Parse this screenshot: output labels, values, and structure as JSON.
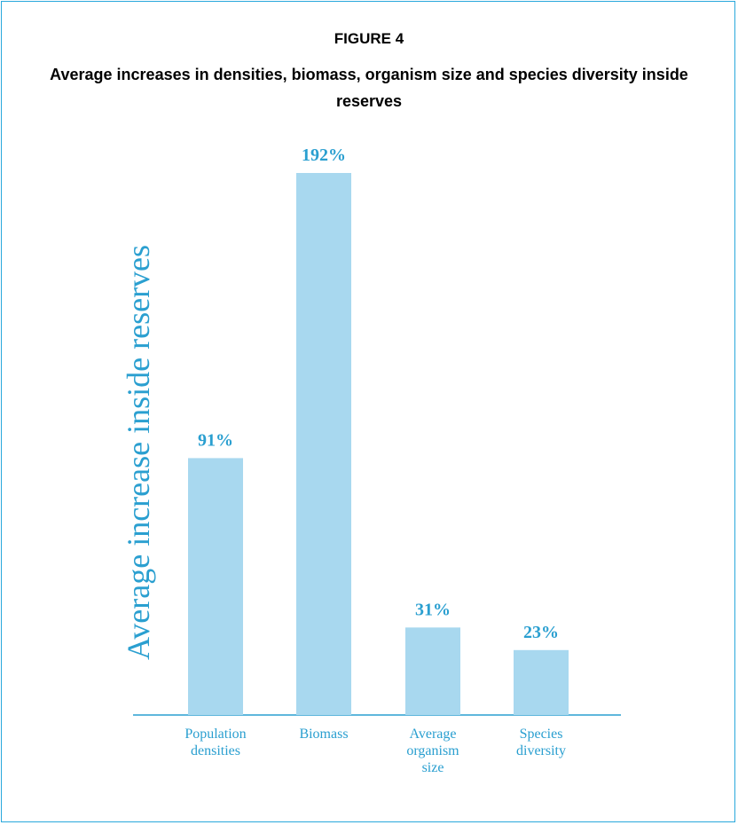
{
  "chart_data": {
    "type": "bar",
    "title": "FIGURE 4",
    "subtitle": "Average increases in densities, biomass, organism size and species diversity inside reserves",
    "y_label": "Average increase inside reserves",
    "categories": [
      "Population densities",
      "Biomass",
      "Average organism size",
      "Species diversity"
    ],
    "values": [
      91,
      192,
      31,
      23
    ],
    "value_labels": [
      "91%",
      "192%",
      "31%",
      "23%"
    ],
    "color": "#a8d8ef",
    "label_color": "#2a9fd0"
  }
}
